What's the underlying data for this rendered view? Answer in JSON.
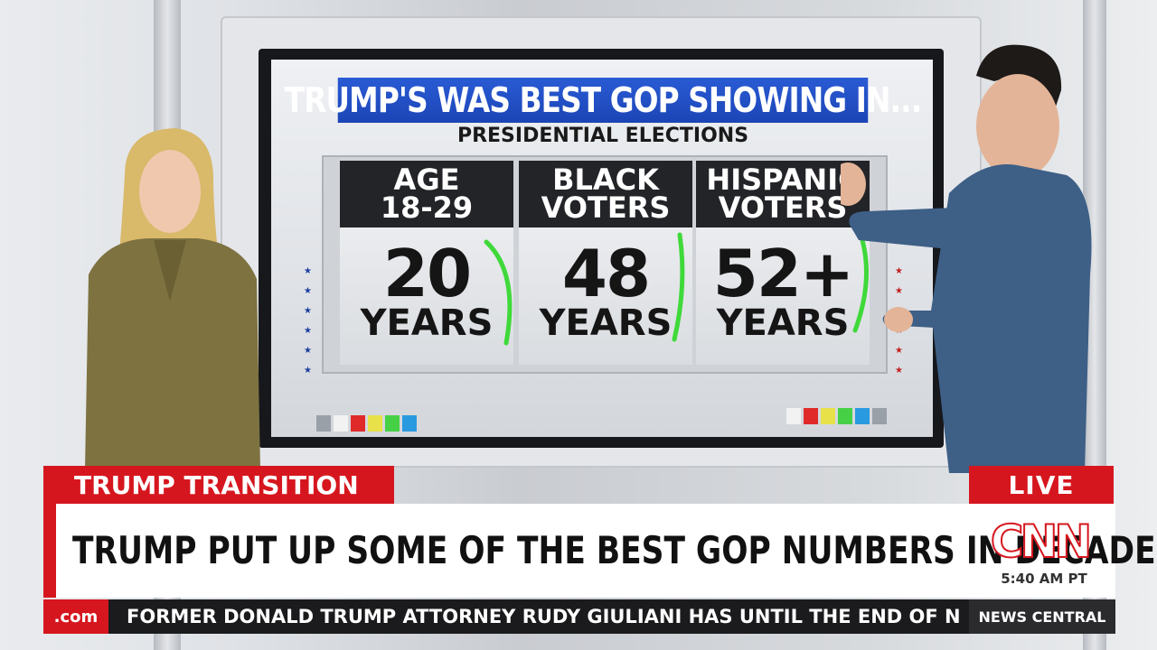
{
  "graphic": {
    "title": "TRUMP'S WAS BEST GOP SHOWING IN...",
    "subtitle": "PRESIDENTIAL ELECTIONS",
    "columns": [
      {
        "head_line1": "AGE",
        "head_line2": "18-29",
        "number": "20",
        "unit": "YEARS"
      },
      {
        "head_line1": "BLACK",
        "head_line2": "VOTERS",
        "number": "48",
        "unit": "YEARS"
      },
      {
        "head_line1": "HISPANIC",
        "head_line2": "VOTERS",
        "number": "52+",
        "unit": "YEARS"
      }
    ],
    "annotation_color": "#3fd93a"
  },
  "lower_third": {
    "section_label": "TRUMP TRANSITION",
    "headline": "TRUMP PUT UP SOME OF THE BEST GOP NUMBERS IN DECADES",
    "live_label": "LIVE",
    "network": "CNN",
    "time": "5:40 AM PT",
    "ticker_tag": ".com",
    "ticker_text": "FORMER DONALD TRUMP ATTORNEY RUDY GIULIANI HAS UNTIL THE END OF N",
    "program": "NEWS CENTRAL",
    "brand_red": "#d6161e"
  }
}
